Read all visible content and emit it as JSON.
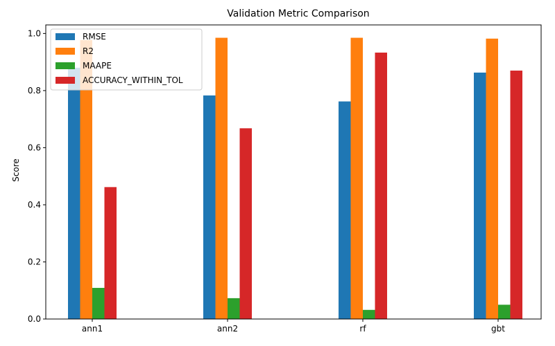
{
  "chart_data": {
    "type": "bar",
    "title": "Validation Metric Comparison",
    "xlabel": "",
    "ylabel": "Score",
    "ylim": [
      0,
      1.03
    ],
    "yticks": [
      0.0,
      0.2,
      0.4,
      0.6,
      0.8,
      1.0
    ],
    "ytick_labels": [
      "0.0",
      "0.2",
      "0.4",
      "0.6",
      "0.8",
      "1.0"
    ],
    "categories": [
      "ann1",
      "ann2",
      "rf",
      "gbt"
    ],
    "legend_position": "top-left",
    "grid": false,
    "series": [
      {
        "name": "RMSE",
        "color": "#1f77b4",
        "values": [
          0.88,
          0.783,
          0.762,
          0.863
        ]
      },
      {
        "name": "R2",
        "color": "#ff7f0e",
        "values": [
          0.977,
          0.985,
          0.985,
          0.982
        ]
      },
      {
        "name": "MAAPE",
        "color": "#2ca02c",
        "values": [
          0.109,
          0.073,
          0.032,
          0.05
        ]
      },
      {
        "name": "ACCURACY_WITHIN_TOL",
        "color": "#d62728",
        "values": [
          0.462,
          0.668,
          0.933,
          0.87
        ]
      }
    ]
  }
}
